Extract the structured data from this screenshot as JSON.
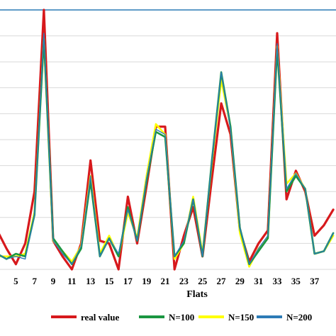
{
  "chart_data": {
    "type": "line",
    "title": "",
    "xlabel": "Flats",
    "ylabel": "",
    "x": [
      3,
      4,
      5,
      6,
      7,
      8,
      9,
      10,
      11,
      12,
      13,
      14,
      15,
      16,
      17,
      18,
      19,
      20,
      21,
      22,
      23,
      24,
      25,
      26,
      27,
      28,
      29,
      30,
      31,
      32,
      33,
      34,
      35,
      36,
      37,
      38,
      39
    ],
    "x_tick_labels": [
      "5",
      "7",
      "9",
      "11",
      "13",
      "15",
      "17",
      "19",
      "21",
      "23",
      "25",
      "27",
      "29",
      "31",
      "33",
      "35",
      "37"
    ],
    "x_tick_values": [
      5,
      7,
      9,
      11,
      13,
      15,
      17,
      19,
      21,
      23,
      25,
      27,
      29,
      31,
      33,
      35,
      37
    ],
    "xlim": [
      3.3,
      39.3
    ],
    "ylim": [
      0,
      100
    ],
    "grid": true,
    "legend_position": "bottom",
    "series": [
      {
        "name": "real value",
        "color": "#d7191c",
        "values": [
          15,
          8,
          2,
          10,
          30,
          100,
          11,
          5,
          0,
          10,
          42,
          11,
          10,
          0,
          28,
          10,
          32,
          55,
          55,
          0,
          13,
          24,
          5,
          35,
          64,
          52,
          15,
          3,
          10,
          15,
          91,
          27,
          38,
          30,
          13,
          17,
          23
        ]
      },
      {
        "name": "N=100",
        "color": "#1a9641",
        "values": [
          6,
          4,
          6,
          5,
          21,
          89,
          12,
          7,
          2,
          8,
          34,
          5,
          12,
          5,
          24,
          11,
          34,
          53,
          51,
          5,
          10,
          27,
          5,
          42,
          76,
          55,
          16,
          2,
          7,
          12,
          85,
          30,
          36,
          31,
          6,
          7,
          14
        ]
      },
      {
        "name": "N=150",
        "color": "#ffff00",
        "values": [
          5,
          5,
          5,
          6,
          22,
          89,
          11,
          7,
          3,
          9,
          36,
          6,
          13,
          5,
          22,
          12,
          36,
          56,
          52,
          4,
          10,
          28,
          6,
          41,
          73,
          55,
          14,
          1,
          8,
          12,
          86,
          33,
          37,
          31,
          6,
          7,
          13
        ]
      },
      {
        "name": "N=200",
        "color": "#2c7bb6",
        "values": [
          6,
          4,
          5,
          4,
          21,
          91,
          11,
          6,
          2,
          9,
          36,
          5,
          12,
          6,
          23,
          11,
          35,
          54,
          52,
          5,
          11,
          27,
          5,
          42,
          76,
          54,
          16,
          2,
          8,
          13,
          87,
          31,
          37,
          31,
          6,
          7,
          14
        ]
      }
    ]
  }
}
